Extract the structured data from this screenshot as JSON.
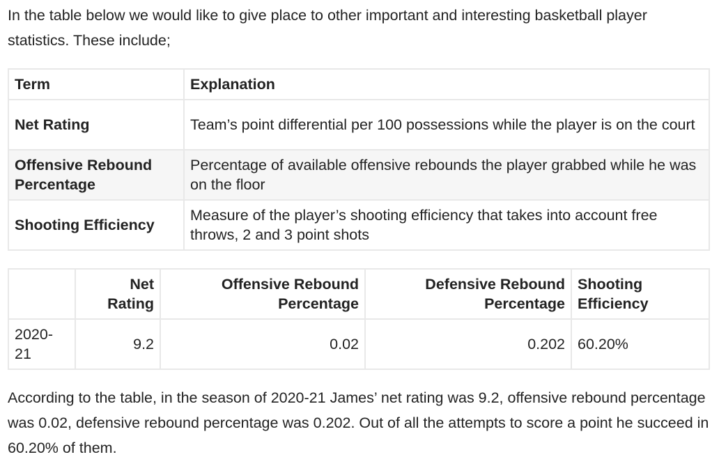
{
  "intro": "In the table below we would like to give place to other important and interesting basketball player statistics. These include;",
  "terms_table": {
    "headers": [
      "Term",
      "Explanation"
    ],
    "rows": [
      {
        "term": "Net Rating",
        "explanation": "Team’s point differential per 100 possessions while the player is on the court"
      },
      {
        "term": "Offensive Rebound Percentage",
        "explanation": "Percentage of available offensive rebounds the player grabbed while he was on the floor"
      },
      {
        "term": "Shooting Efficiency",
        "explanation": "Measure of the player’s shooting efficiency that takes into account free throws, 2 and 3 point shots"
      }
    ]
  },
  "stats_table": {
    "headers": [
      "",
      "Net Rating",
      "Offensive Rebound Percentage",
      "Defensive Rebound Percentage",
      "Shooting Efficiency"
    ],
    "rows": [
      {
        "season": "2020-21",
        "net_rating": "9.2",
        "orb_pct": "0.02",
        "drb_pct": "0.202",
        "shooting_eff": "60.20%"
      }
    ]
  },
  "outro": "According to the table, in the season of 2020-21 James’ net rating was 9.2, offensive rebound percentage was 0.02, defensive rebound percentage was 0.202. Out of all the attempts to score a point he succeed in 60.20% of them."
}
